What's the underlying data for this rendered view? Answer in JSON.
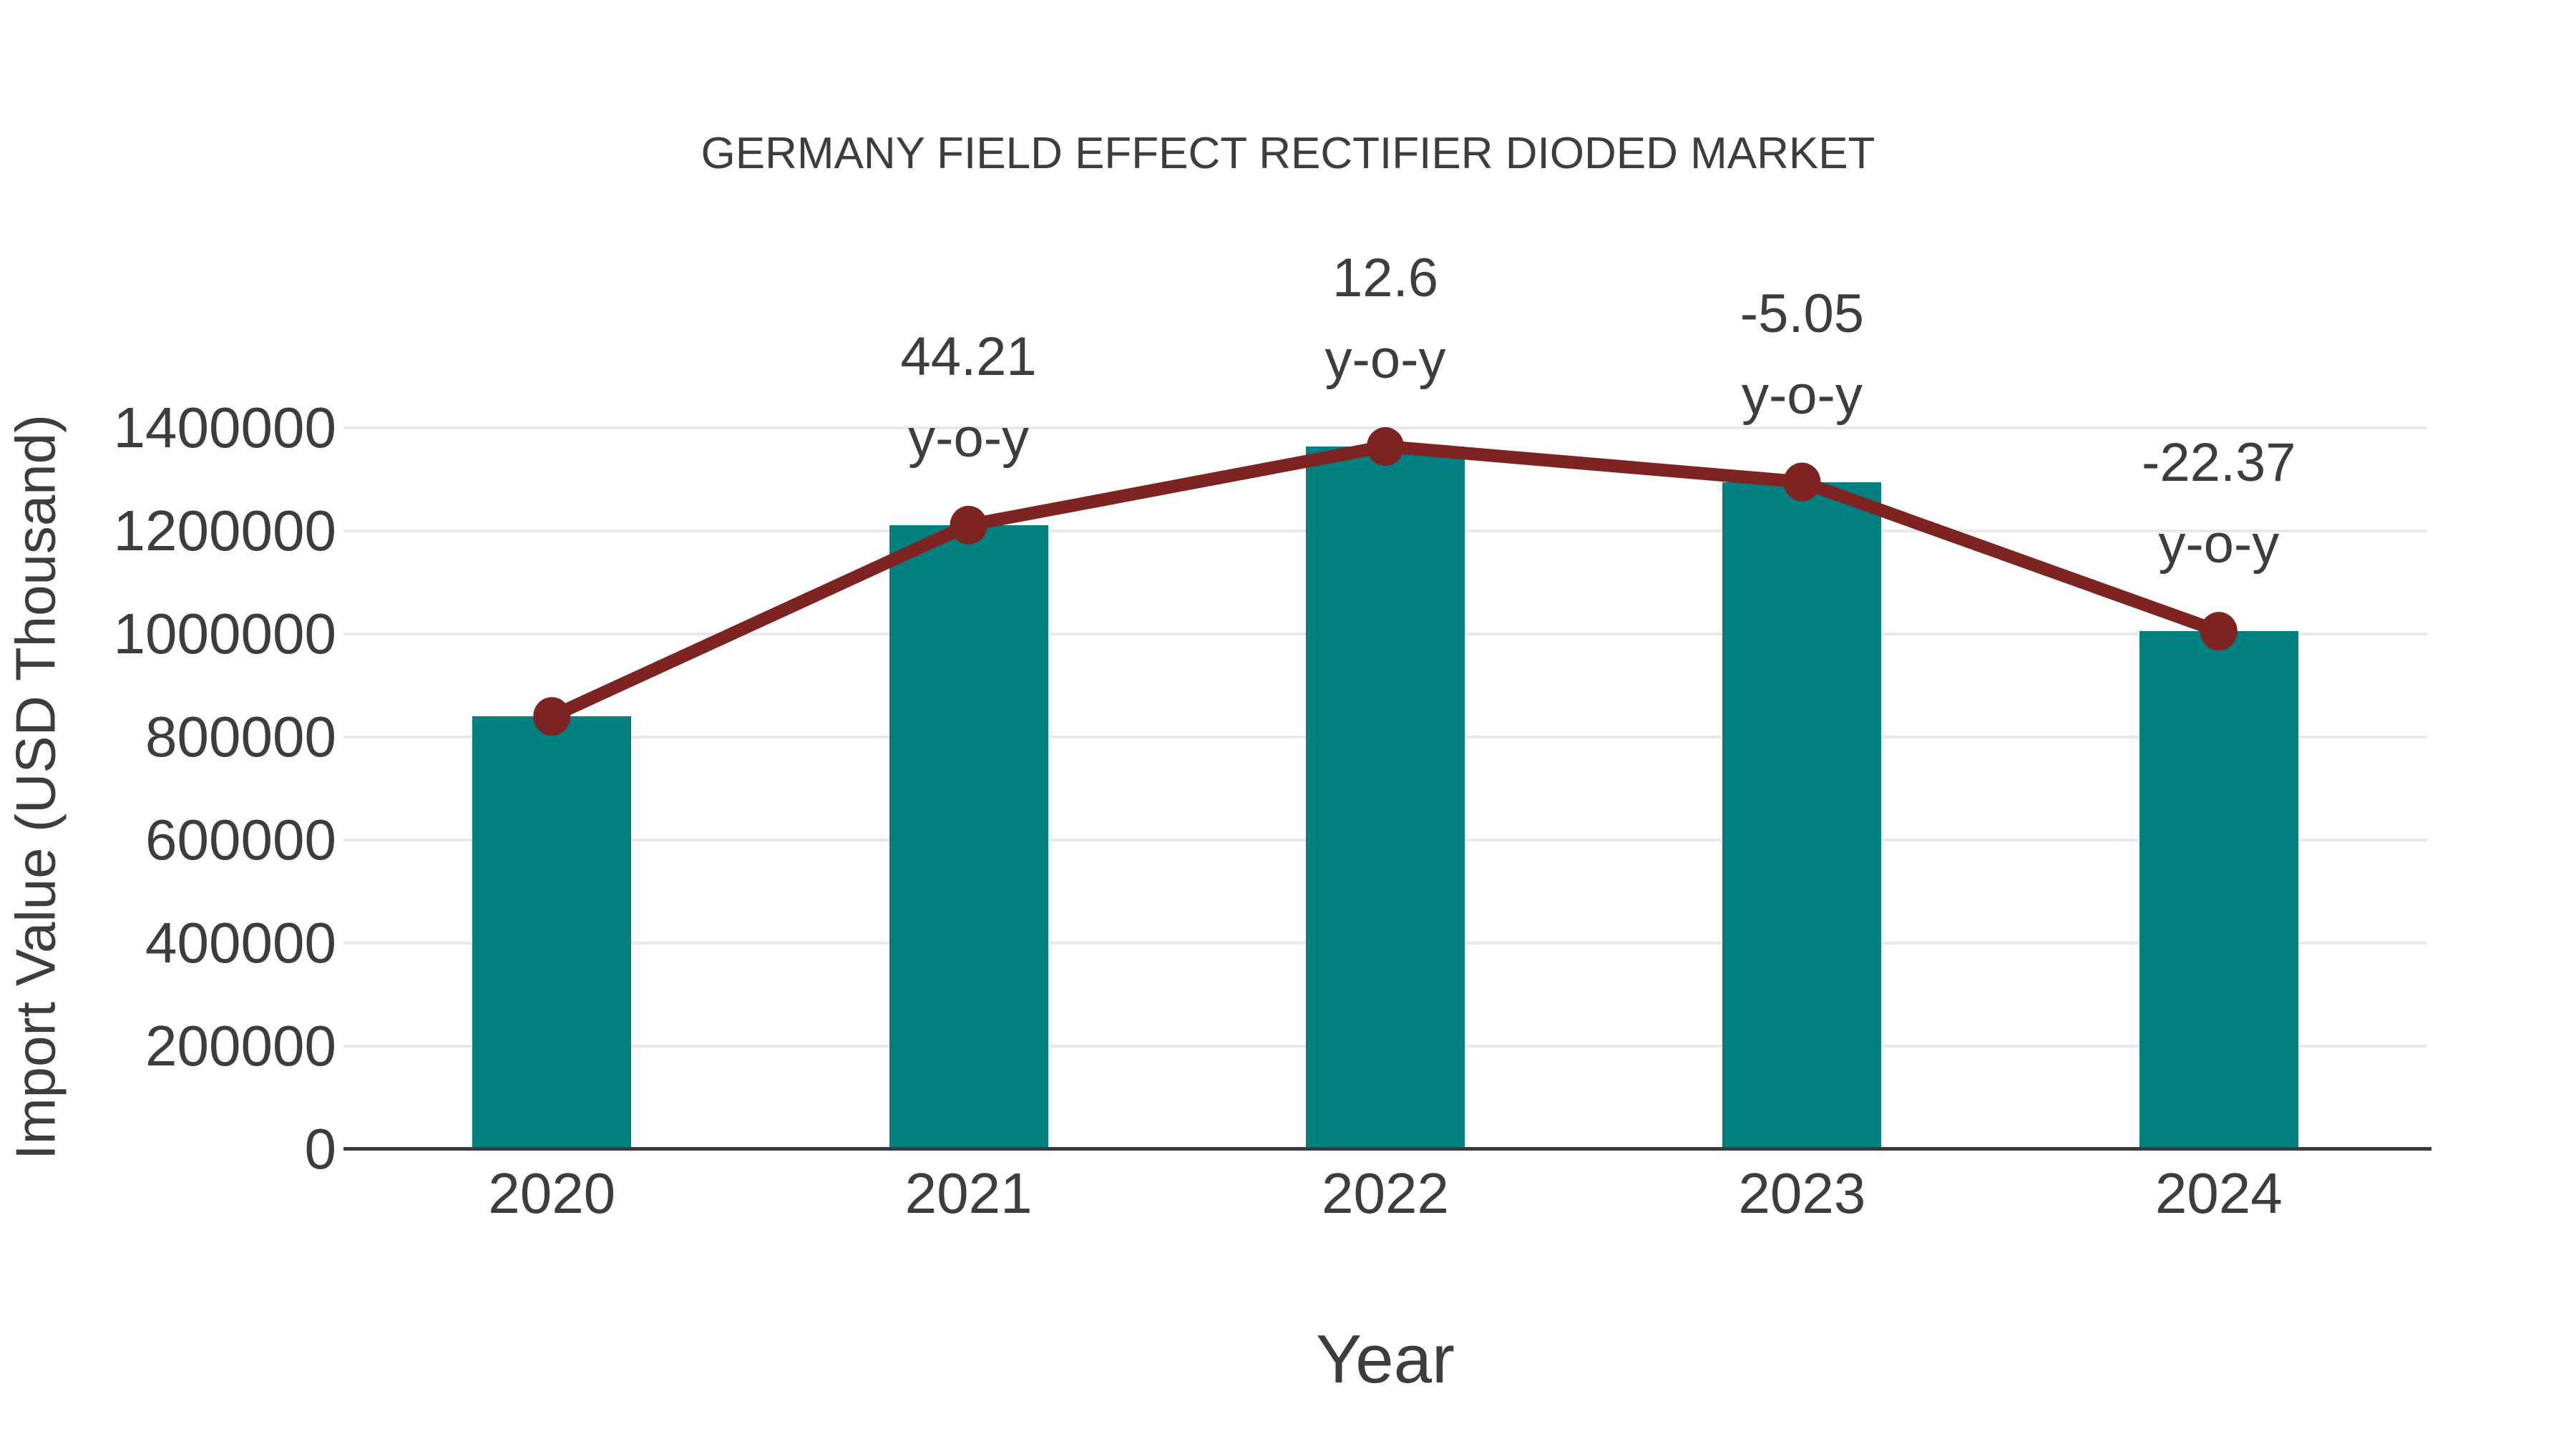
{
  "chart_data": {
    "type": "bar",
    "subtype": "bar-with-line-overlay",
    "title": "GERMANY FIELD EFFECT RECTIFIER DIODED MARKET",
    "xlabel": "Year",
    "ylabel": "Import Value (USD Thousand)",
    "categories": [
      "2020",
      "2021",
      "2022",
      "2023",
      "2024"
    ],
    "series": [
      {
        "name": "Import Value bars",
        "type": "bar",
        "values": [
          840000,
          1211364,
          1363996,
          1295114,
          1005297
        ]
      },
      {
        "name": "Import Value trend line",
        "type": "line",
        "values": [
          840000,
          1211364,
          1363996,
          1295114,
          1005297
        ]
      }
    ],
    "yoy_percent": [
      null,
      44.21,
      12.6,
      -5.05,
      -22.37
    ],
    "annotations": [
      {
        "category": "2021",
        "line1": "44.21",
        "line2": "y-o-y"
      },
      {
        "category": "2022",
        "line1": "12.6",
        "line2": "y-o-y"
      },
      {
        "category": "2023",
        "line1": "-5.05",
        "line2": "y-o-y"
      },
      {
        "category": "2024",
        "line1": "-22.37",
        "line2": "y-o-y"
      }
    ],
    "yticks": [
      0,
      200000,
      400000,
      600000,
      800000,
      1000000,
      1200000,
      1400000
    ],
    "ytick_labels": [
      "0",
      "200000",
      "400000",
      "600000",
      "800000",
      "1000000",
      "1200000",
      "1400000"
    ],
    "xtick_labels": [
      "2020",
      "2021",
      "2022",
      "2023",
      "2024"
    ],
    "ylim": [
      0,
      1400000
    ],
    "grid": "horizontal",
    "legend_position": "none",
    "colors": {
      "bar": "#008080",
      "line": "#7d2321",
      "marker": "#7d2321",
      "grid": "#e8e8e8",
      "axis": "#3a3a3a",
      "text": "#3d3d3d"
    }
  }
}
